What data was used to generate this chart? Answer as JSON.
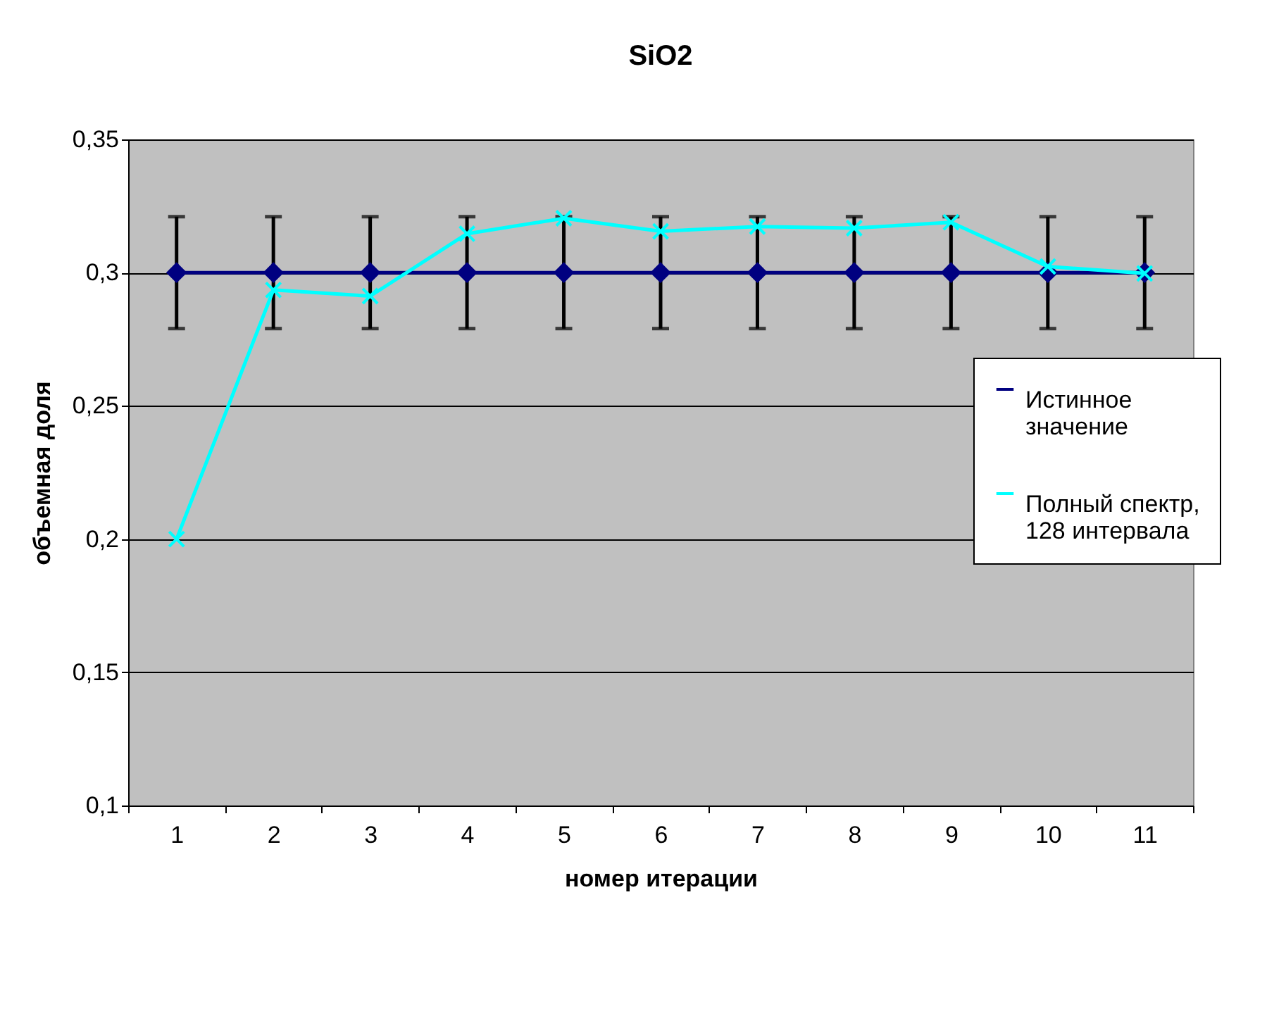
{
  "chart_data": {
    "type": "line",
    "title": "SiO2",
    "xlabel": "номер итерации",
    "ylabel": "объемная доля",
    "categories": [
      "1",
      "2",
      "3",
      "4",
      "5",
      "6",
      "7",
      "8",
      "9",
      "10",
      "11"
    ],
    "series": [
      {
        "name": "Истинное значение",
        "color": "#000080",
        "marker": "diamond",
        "values": [
          0.3,
          0.3,
          0.3,
          0.3,
          0.3,
          0.3,
          0.3,
          0.3,
          0.3,
          0.3,
          0.3
        ],
        "errors": [
          0.021,
          0.021,
          0.021,
          0.021,
          0.021,
          0.021,
          0.021,
          0.021,
          0.021,
          0.021,
          0.021
        ]
      },
      {
        "name": "Полный спектр, 128 интервала",
        "color": "#00ffff",
        "marker": "cross",
        "values": [
          0.2,
          0.2935,
          0.2912,
          0.3146,
          0.3204,
          0.3155,
          0.3173,
          0.3167,
          0.3189,
          0.3023,
          0.2997
        ]
      }
    ],
    "ylim": [
      0.1,
      0.35
    ],
    "yticks": [
      {
        "value": 0.1,
        "label": "0,1"
      },
      {
        "value": 0.15,
        "label": "0,15"
      },
      {
        "value": 0.2,
        "label": "0,2"
      },
      {
        "value": 0.25,
        "label": "0,25"
      },
      {
        "value": 0.3,
        "label": "0,3"
      },
      {
        "value": 0.35,
        "label": "0,35"
      }
    ],
    "grid": "y",
    "legend": "right",
    "line_style": "solid"
  }
}
